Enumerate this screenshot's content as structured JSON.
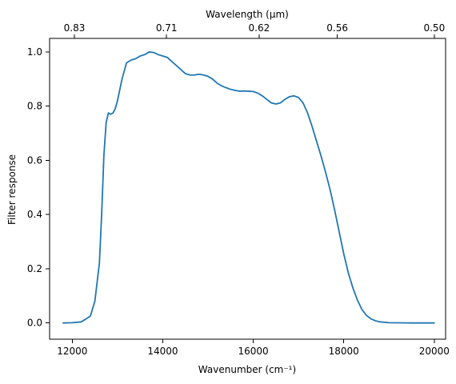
{
  "chart_data": {
    "type": "line",
    "title": "",
    "xlabel": "Wavenumber (cm⁻¹)",
    "ylabel": "Filter response",
    "top_xlabel": "Wavelength (μm)",
    "xlim": [
      11500,
      20250
    ],
    "ylim": [
      -0.06,
      1.05
    ],
    "xticks": [
      12000,
      14000,
      16000,
      18000,
      20000
    ],
    "xtick_labels": [
      "12000",
      "14000",
      "16000",
      "18000",
      "20000"
    ],
    "yticks": [
      0.0,
      0.2,
      0.4,
      0.6,
      0.8,
      1.0
    ],
    "ytick_labels": [
      "0.0",
      "0.2",
      "0.4",
      "0.6",
      "0.8",
      "1.0"
    ],
    "top_xticks": [
      0.83,
      0.71,
      0.62,
      0.56,
      0.5
    ],
    "top_xtick_labels": [
      "0.83",
      "0.71",
      "0.62",
      "0.56",
      "0.50"
    ],
    "grid": false,
    "series": [
      {
        "color": "#1f77b4",
        "x": [
          11800,
          12000,
          12200,
          12400,
          12500,
          12600,
          12650,
          12700,
          12750,
          12800,
          12850,
          12900,
          12950,
          13000,
          13100,
          13200,
          13300,
          13400,
          13500,
          13600,
          13700,
          13800,
          13900,
          14000,
          14100,
          14200,
          14300,
          14400,
          14500,
          14600,
          14700,
          14800,
          14900,
          15000,
          15100,
          15200,
          15300,
          15400,
          15500,
          15600,
          15700,
          15800,
          15900,
          16000,
          16100,
          16200,
          16300,
          16400,
          16500,
          16600,
          16700,
          16800,
          16900,
          17000,
          17100,
          17200,
          17300,
          17400,
          17500,
          17600,
          17700,
          17800,
          17900,
          18000,
          18100,
          18200,
          18300,
          18400,
          18500,
          18600,
          18700,
          18800,
          19000,
          19500,
          20000
        ],
        "y": [
          0.0,
          0.001,
          0.004,
          0.025,
          0.08,
          0.22,
          0.4,
          0.62,
          0.74,
          0.775,
          0.77,
          0.775,
          0.79,
          0.82,
          0.9,
          0.96,
          0.97,
          0.975,
          0.985,
          0.99,
          1.0,
          0.998,
          0.99,
          0.985,
          0.98,
          0.965,
          0.95,
          0.935,
          0.92,
          0.915,
          0.915,
          0.918,
          0.915,
          0.91,
          0.9,
          0.885,
          0.875,
          0.868,
          0.862,
          0.858,
          0.855,
          0.856,
          0.855,
          0.854,
          0.848,
          0.838,
          0.825,
          0.812,
          0.808,
          0.812,
          0.825,
          0.835,
          0.838,
          0.832,
          0.812,
          0.775,
          0.725,
          0.67,
          0.615,
          0.555,
          0.49,
          0.415,
          0.335,
          0.255,
          0.185,
          0.13,
          0.085,
          0.05,
          0.028,
          0.015,
          0.008,
          0.004,
          0.001,
          0.0,
          0.0
        ]
      }
    ]
  }
}
